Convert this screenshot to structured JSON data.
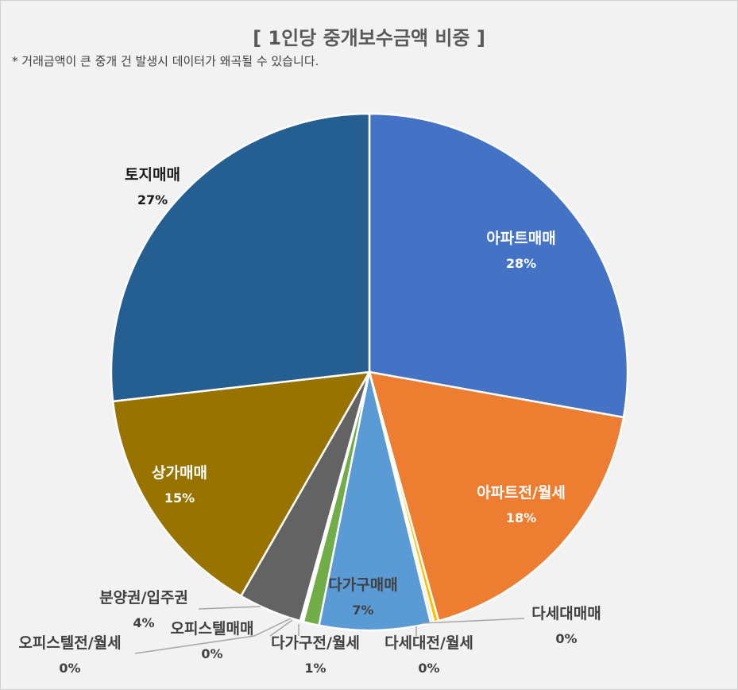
{
  "title": "[ 1인당 중개보수금액 비중 ]",
  "subtitle": "* 거래금액이 큰 중개 건 발생시 데이터가 왜곡될 수 있습니다.",
  "chart_data": {
    "type": "pie",
    "title": "[ 1인당 중개보수금액 비중 ]",
    "data_labels_format": "category + percent",
    "slices": [
      {
        "name": "아파트매매",
        "value": 28,
        "label": "28%",
        "color": "#4472c4"
      },
      {
        "name": "아파트전/월세",
        "value": 18,
        "label": "18%",
        "color": "#ed7d31"
      },
      {
        "name": "다세대매매",
        "value": 0.3,
        "label": "0%",
        "color": "#ffc000"
      },
      {
        "name": "다세대전/월세",
        "value": 0.2,
        "label": "0%",
        "color": "#e8e8e8"
      },
      {
        "name": "다가구매매",
        "value": 7,
        "label": "7%",
        "color": "#5b9bd5"
      },
      {
        "name": "다가구전/월세",
        "value": 1,
        "label": "1%",
        "color": "#70ad47"
      },
      {
        "name": "오피스텔매매",
        "value": 0.1,
        "label": "0%",
        "color": "#8faadc"
      },
      {
        "name": "오피스텔전/월세",
        "value": 0.1,
        "label": "0%",
        "color": "#bfbfbf"
      },
      {
        "name": "분양권/입주권",
        "value": 4,
        "label": "4%",
        "color": "#636363"
      },
      {
        "name": "상가매매",
        "value": 15,
        "label": "15%",
        "color": "#997300"
      },
      {
        "name": "토지매매",
        "value": 27,
        "label": "27%",
        "color": "#255e91"
      }
    ]
  }
}
